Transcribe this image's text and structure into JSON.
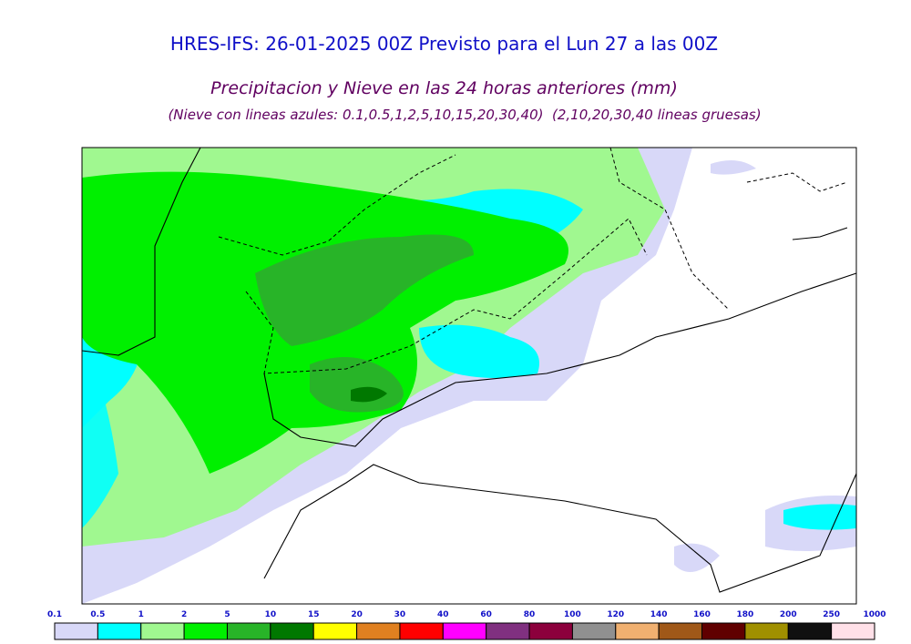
{
  "header": {
    "title": "HRES-IFS: 26-01-2025 00Z Previsto para el Lun 27 a las 00Z",
    "subtitle": "Precipitacion y Nieve en las 24 horas anteriores (mm)",
    "note": "(Nieve con lineas azules: 0.1,0.5,1,2,5,10,15,20,30,40)  (2,10,20,30,40 lineas gruesas)"
  },
  "legend": {
    "levels": [
      "0.1",
      "0.5",
      "1",
      "2",
      "5",
      "10",
      "15",
      "20",
      "30",
      "40",
      "60",
      "80",
      "100",
      "120",
      "140",
      "160",
      "180",
      "200",
      "250",
      "1000"
    ],
    "colors": [
      "#d8d8f8",
      "#00ffff",
      "#a0f890",
      "#00f000",
      "#28b428",
      "#007800",
      "#ffff00",
      "#e08020",
      "#ff0000",
      "#ff00ff",
      "#803080",
      "#8c003c",
      "#909090",
      "#f0b070",
      "#a05818",
      "#600000",
      "#a09000",
      "#101010",
      "#ffe0e8"
    ]
  }
}
